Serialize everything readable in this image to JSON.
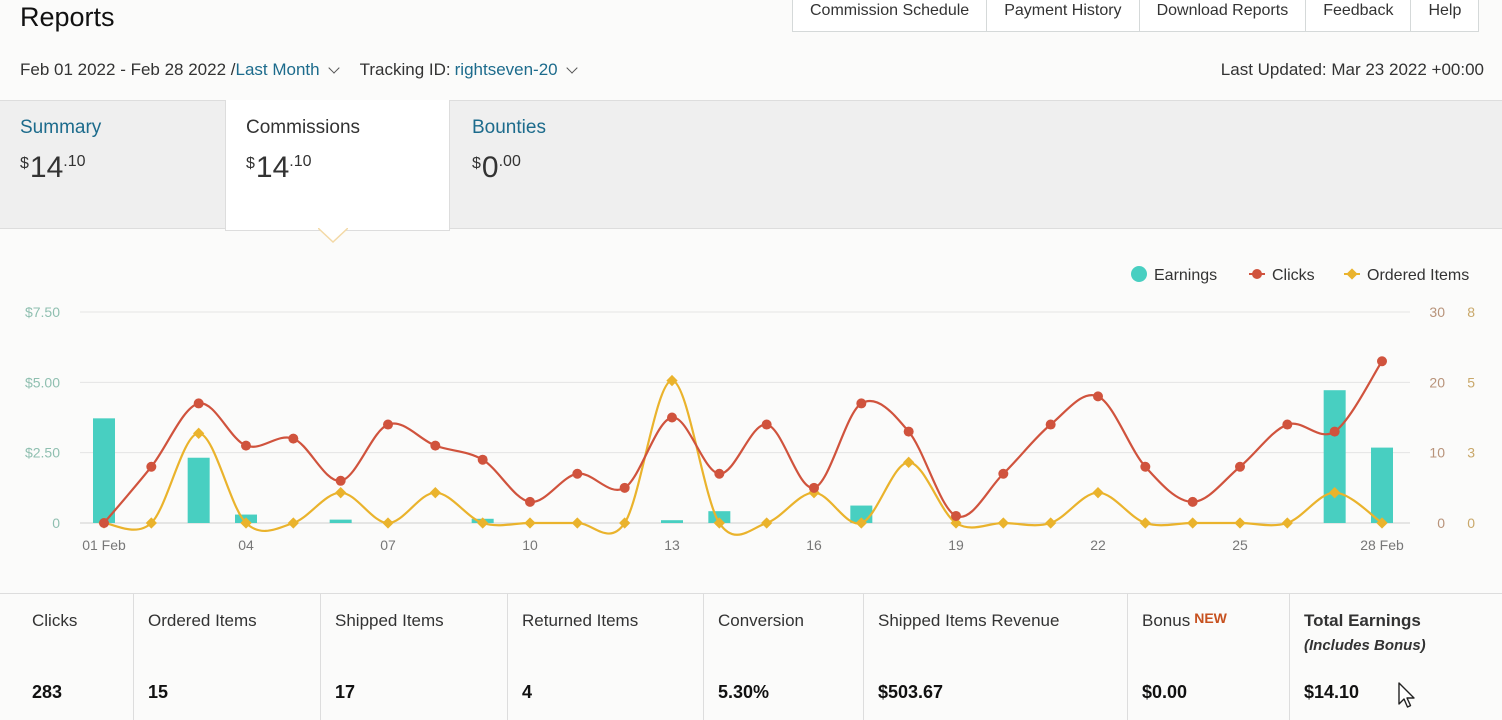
{
  "page": {
    "title": "Reports"
  },
  "top_nav": [
    {
      "label": "Commission Schedule"
    },
    {
      "label": "Payment History"
    },
    {
      "label": "Download Reports"
    },
    {
      "label": "Feedback"
    },
    {
      "label": "Help"
    }
  ],
  "filters": {
    "date_range": "Feb 01 2022 - Feb 28 2022 / ",
    "period": "Last Month",
    "tracking_prefix": "Tracking ID: ",
    "tracking_id": "rightseven-20"
  },
  "last_updated": "Last Updated: Mar 23 2022 +00:00",
  "tabs": [
    {
      "label": "Summary",
      "currency": "$",
      "whole": "14",
      "cents": ".10",
      "active": false
    },
    {
      "label": "Commissions",
      "currency": "$",
      "whole": "14",
      "cents": ".10",
      "active": true
    },
    {
      "label": "Bounties",
      "currency": "$",
      "whole": "0",
      "cents": ".00",
      "active": false
    }
  ],
  "stats": [
    {
      "label": "Clicks",
      "value": "283"
    },
    {
      "label": "Ordered Items",
      "value": "15"
    },
    {
      "label": "Shipped Items",
      "value": "17"
    },
    {
      "label": "Returned Items",
      "value": "4"
    },
    {
      "label": "Conversion",
      "value": "5.30%"
    },
    {
      "label": "Shipped Items Revenue",
      "value": "$503.67"
    },
    {
      "label": "Bonus",
      "badge": "NEW",
      "value": "$0.00"
    },
    {
      "label": "Total Earnings",
      "sublabel": "(Includes Bonus)",
      "value": "$14.10"
    }
  ],
  "chart_data": {
    "type": "bar",
    "x": [
      "01 Feb",
      "02",
      "03",
      "04",
      "05",
      "06",
      "07",
      "08",
      "09",
      "10",
      "11",
      "12",
      "13",
      "14",
      "15",
      "16",
      "17",
      "18",
      "19",
      "20",
      "21",
      "22",
      "23",
      "24",
      "25",
      "26",
      "27",
      "28 Feb"
    ],
    "x_tick_labels": [
      "01 Feb",
      "04",
      "07",
      "10",
      "13",
      "16",
      "19",
      "22",
      "25",
      "28 Feb"
    ],
    "legend_position": "top-right",
    "grid": true,
    "axes": {
      "left": {
        "ticks": [
          "0",
          "$2.50",
          "$5.00",
          "$7.50"
        ],
        "range": [
          0,
          7.5
        ]
      },
      "right_clicks": {
        "ticks": [
          "0",
          "10",
          "20",
          "30"
        ],
        "range": [
          0,
          30
        ]
      },
      "right_items": {
        "ticks": [
          "0",
          "3",
          "5",
          "8"
        ],
        "range": [
          0,
          8
        ]
      }
    },
    "series": [
      {
        "name": "Earnings",
        "type": "bar",
        "axis": "left",
        "color": "#48cfc1",
        "values": [
          3.72,
          0,
          2.32,
          0.3,
          0,
          0.12,
          0,
          0,
          0.15,
          0,
          0,
          0,
          0.1,
          0.42,
          0,
          0,
          0.62,
          0,
          0,
          0,
          0,
          0,
          0,
          0,
          0,
          0,
          4.72,
          2.68
        ]
      },
      {
        "name": "Clicks",
        "type": "line",
        "axis": "right_clicks",
        "color": "#d0533d",
        "values": [
          0,
          8,
          17,
          11,
          12,
          6,
          14,
          11,
          9,
          3,
          7,
          5,
          15,
          7,
          14,
          5,
          17,
          13,
          1,
          7,
          14,
          18,
          8,
          3,
          8,
          14,
          13,
          23
        ]
      },
      {
        "name": "Ordered Items",
        "type": "line",
        "axis": "right_items",
        "color": "#eab32c",
        "values": [
          0,
          0,
          3.4,
          0,
          0,
          1.15,
          0,
          1.15,
          0,
          0,
          0,
          0,
          5.4,
          0,
          0,
          1.15,
          0,
          2.3,
          0,
          0,
          0,
          1.15,
          0,
          0,
          0,
          0,
          1.15,
          0
        ]
      }
    ]
  }
}
